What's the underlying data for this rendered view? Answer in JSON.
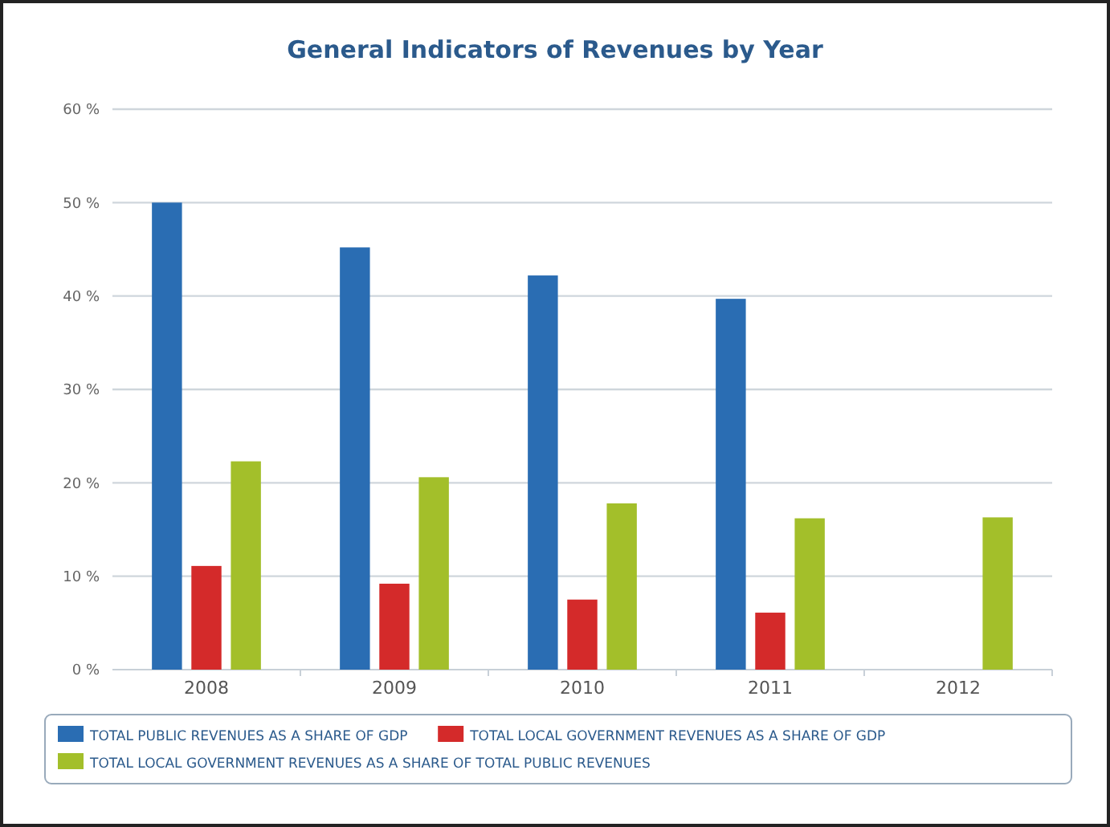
{
  "chart_data": {
    "type": "bar",
    "title": "General Indicators of Revenues by Year",
    "categories": [
      "2008",
      "2009",
      "2010",
      "2011",
      "2012"
    ],
    "series": [
      {
        "name": "TOTAL PUBLIC REVENUES AS A SHARE OF GDP",
        "color": "#2a6db3",
        "values": [
          50,
          45.2,
          42.2,
          39.7,
          null
        ]
      },
      {
        "name": "TOTAL LOCAL GOVERNMENT REVENUES AS A SHARE OF GDP",
        "color": "#d42a2a",
        "values": [
          11.1,
          9.2,
          7.5,
          6.1,
          null
        ]
      },
      {
        "name": "TOTAL LOCAL GOVERNMENT REVENUES AS A SHARE OF TOTAL PUBLIC REVENUES",
        "color": "#a3bf2a",
        "values": [
          22.3,
          20.6,
          17.8,
          16.2,
          16.3
        ]
      }
    ],
    "ylim": [
      0,
      60
    ],
    "yticks": [
      {
        "value": 0,
        "label": "0 %"
      },
      {
        "value": 10,
        "label": "10 %"
      },
      {
        "value": 20,
        "label": "20 %"
      },
      {
        "value": 30,
        "label": "30 %"
      },
      {
        "value": 40,
        "label": "40 %"
      },
      {
        "value": 50,
        "label": "50 %"
      },
      {
        "value": 60,
        "label": "60 %"
      }
    ],
    "grid": "y",
    "legend": "bottom"
  }
}
